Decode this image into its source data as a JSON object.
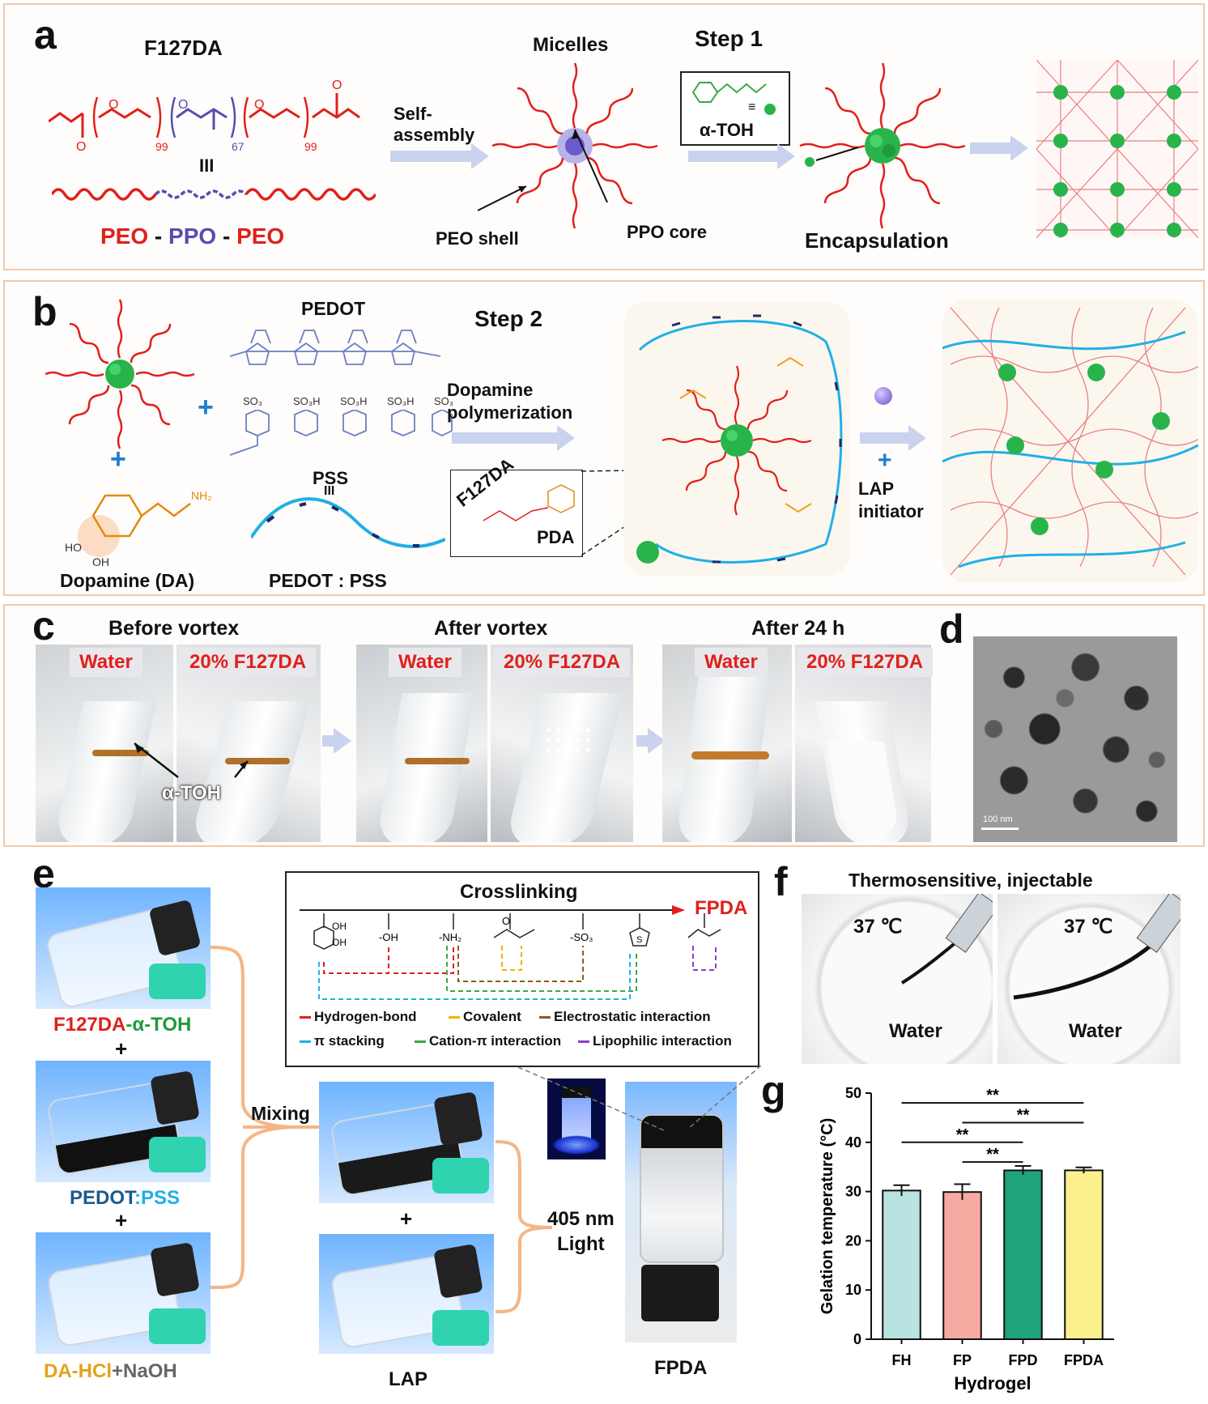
{
  "panel_a": {
    "label": "a",
    "f127da_title": "F127DA",
    "subscripts": [
      "99",
      "67",
      "99"
    ],
    "equiv": "III",
    "peo1": "PEO",
    "dash1": " - ",
    "ppo": "PPO",
    "dash2": " - ",
    "peo2": "PEO",
    "self_assembly": "Self-\nassembly",
    "micelles": "Micelles",
    "peo_shell": "PEO shell",
    "ppo_core": "PPO core",
    "step": "Step 1",
    "toh_equiv": "≡",
    "toh": "α-TOH",
    "encapsulation": "Encapsulation"
  },
  "panel_b": {
    "label": "b",
    "pedot": "PEDOT",
    "so3_labels": [
      "SO₃",
      "SO₃H",
      "SO₃H",
      "SO₃H",
      "SO₃"
    ],
    "pss": "PSS",
    "equiv": "III",
    "pedot_pss": "PEDOT : PSS",
    "dopamine": "Dopamine (DA)",
    "nh2": "NH₂",
    "oh1": "HO",
    "oh2": "OH",
    "step": "Step 2",
    "polymerization": "Dopamine\npolymerization",
    "inset_f127da": "F127DA",
    "inset_pda": "PDA",
    "lap_initiator": "LAP\ninitiator"
  },
  "panel_c": {
    "label": "c",
    "stages": [
      {
        "title": "Before vortex",
        "left": "Water",
        "right": "20% F127DA"
      },
      {
        "title": "After vortex",
        "left": "Water",
        "right": "20% F127DA"
      },
      {
        "title": "After 24 h",
        "left": "Water",
        "right": "20% F127DA"
      }
    ],
    "toh": "α-TOH"
  },
  "panel_d": {
    "label": "d",
    "scale": "100 nm"
  },
  "panel_e": {
    "label": "e",
    "vial1": "F127DA",
    "vial1b": "-α-TOH",
    "plus": "+",
    "vial2a": "PEDOT",
    "vial2b": ":PSS",
    "vial3a": "DA-HCl",
    "vial3b": "+NaOH",
    "mixing": "Mixing",
    "lap": "LAP",
    "light": "405 nm\nLight",
    "fpda": "FPDA",
    "crosslinking": "Crosslinking",
    "fpda_arrow": "FPDA",
    "groups": [
      "OH",
      "OH",
      "-OH",
      "-NH₂",
      "O",
      "-SO₃",
      "S"
    ],
    "legend": [
      {
        "name": "Hydrogen-bond",
        "color": "#e0201c"
      },
      {
        "name": "Covalent",
        "color": "#f0b400"
      },
      {
        "name": "Electrostatic interaction",
        "color": "#8b5a14"
      },
      {
        "name": "π stacking",
        "color": "#1fb0e6"
      },
      {
        "name": "Cation-π interaction",
        "color": "#3aa845"
      },
      {
        "name": "Lipophilic interaction",
        "color": "#8a3fd0"
      }
    ]
  },
  "panel_f": {
    "label": "f",
    "title": "Thermosensitive, injectable",
    "left_temp": "37 ℃",
    "right_temp": "37 ℃",
    "left_medium": "Water",
    "right_medium": "Water"
  },
  "panel_g": {
    "label": "g"
  },
  "chart_data": {
    "type": "bar",
    "categories": [
      "FH",
      "FP",
      "FPD",
      "FPDA"
    ],
    "values": [
      30.2,
      29.9,
      34.3,
      34.3
    ],
    "errors": [
      1.1,
      1.6,
      0.9,
      0.6
    ],
    "colors": [
      "#b9e3e0",
      "#f7aaa2",
      "#1ea37a",
      "#fbef8e"
    ],
    "xlabel": "Hydrogel",
    "ylabel": "Gelation temperature (°C)",
    "ylim": [
      0,
      50
    ],
    "yticks": [
      0,
      10,
      20,
      30,
      40,
      50
    ],
    "significance": [
      {
        "from": "FH",
        "to": "FPDA",
        "label": "**"
      },
      {
        "from": "FP",
        "to": "FPDA",
        "label": "**"
      },
      {
        "from": "FH",
        "to": "FPD",
        "label": "**"
      },
      {
        "from": "FP",
        "to": "FPD",
        "label": "**"
      }
    ]
  }
}
